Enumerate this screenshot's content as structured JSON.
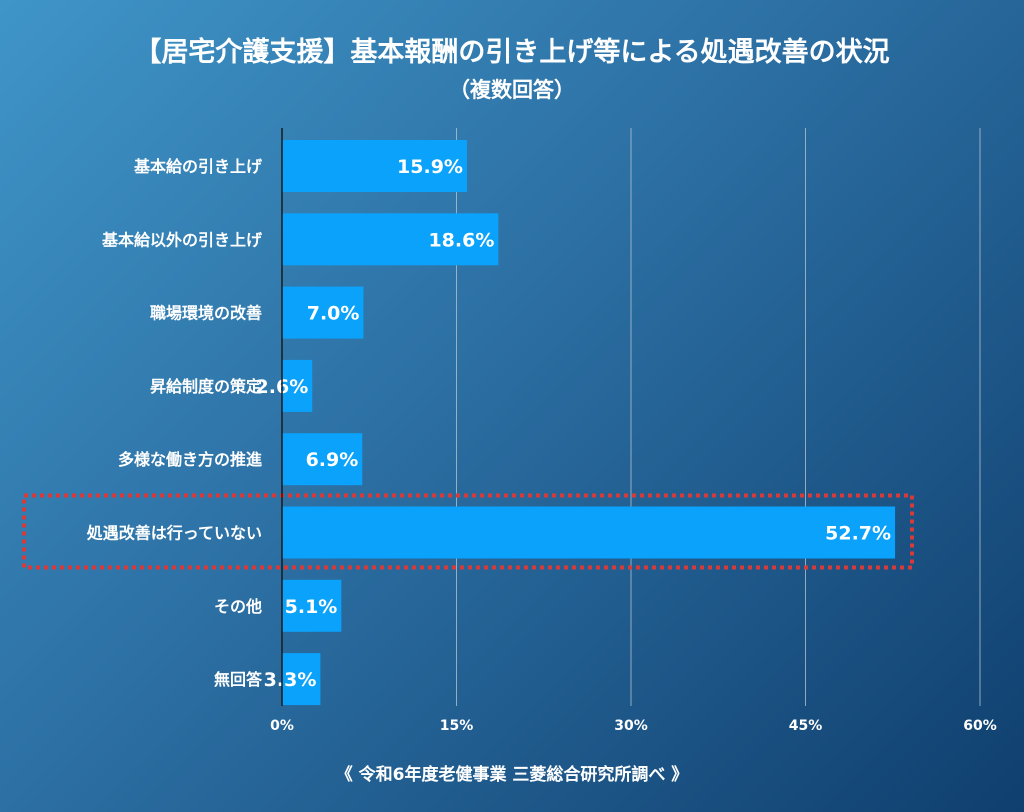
{
  "chart_data": {
    "type": "bar",
    "orientation": "horizontal",
    "title": "【居宅介護支援】基本報酬の引き上げ等による処遇改善の状況",
    "subtitle": "（複数回答）",
    "categories": [
      "基本給の引き上げ",
      "基本給以外の引き上げ",
      "職場環境の改善",
      "昇給制度の策定",
      "多様な働き方の推進",
      "処遇改善は行っていない",
      "その他",
      "無回答"
    ],
    "values": [
      15.9,
      18.6,
      7.0,
      2.6,
      6.9,
      52.7,
      5.1,
      3.3
    ],
    "value_labels": [
      "15.9%",
      "18.6%",
      "7.0%",
      "2.6%",
      "6.9%",
      "52.7%",
      "5.1%",
      "3.3%"
    ],
    "x_ticks": [
      0,
      15,
      30,
      45,
      60
    ],
    "x_tick_labels": [
      "0%",
      "15%",
      "30%",
      "45%",
      "60%"
    ],
    "xlim": [
      0,
      60
    ],
    "grid": true,
    "highlighted_category": "処遇改善は行っていない",
    "colors": {
      "bar": "#0aa2fb",
      "highlight_box": "#d83a3a",
      "grid": "#b8c8d6",
      "text": "#ffffff"
    }
  },
  "footer": {
    "source": "《 令和6年度老健事業 三菱総合研究所調べ 》"
  }
}
